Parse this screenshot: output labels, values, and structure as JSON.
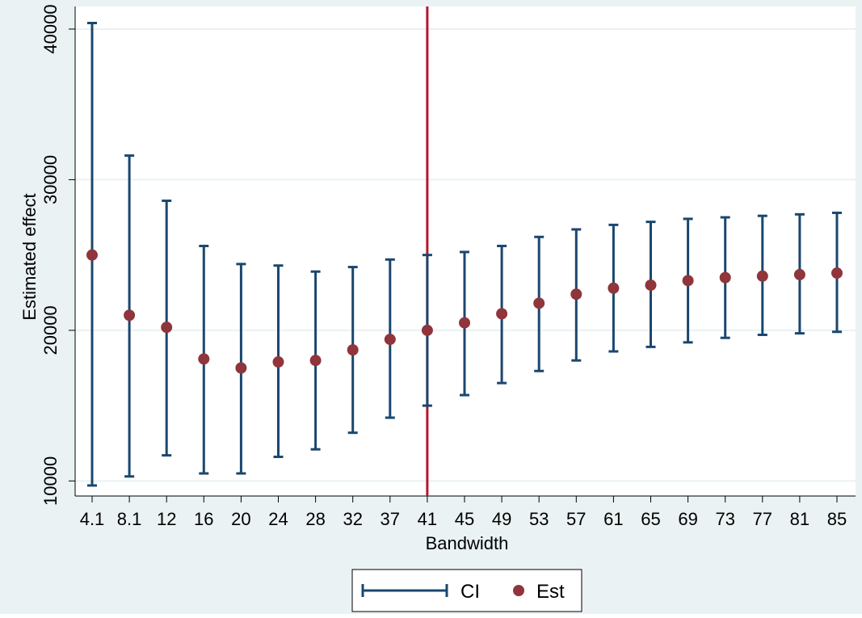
{
  "chart_data": {
    "type": "scatter",
    "xlabel": "Bandwidth",
    "ylabel": "Estimated effect",
    "categories": [
      "4.1",
      "8.1",
      "12",
      "16",
      "20",
      "24",
      "28",
      "32",
      "37",
      "41",
      "45",
      "49",
      "53",
      "57",
      "61",
      "65",
      "69",
      "73",
      "77",
      "81",
      "85"
    ],
    "series": [
      {
        "name": "Est",
        "values": [
          25000,
          21000,
          20200,
          18100,
          17500,
          17900,
          18000,
          18700,
          19400,
          20000,
          20500,
          21100,
          21800,
          22400,
          22800,
          23000,
          23300,
          23500,
          23600,
          23700,
          23800
        ]
      },
      {
        "name": "CI",
        "lower": [
          9700,
          10300,
          11700,
          10500,
          10500,
          11600,
          12100,
          13200,
          14200,
          15000,
          15700,
          16500,
          17300,
          18000,
          18600,
          18900,
          19200,
          19500,
          19700,
          19800,
          19900
        ],
        "upper": [
          40400,
          31600,
          28600,
          25600,
          24400,
          24300,
          23900,
          24200,
          24700,
          25000,
          25200,
          25600,
          26200,
          26700,
          27000,
          27200,
          27400,
          27500,
          27600,
          27700,
          27800
        ]
      }
    ],
    "yticks": [
      10000,
      20000,
      30000,
      40000
    ],
    "ytick_labels": [
      "10000",
      "20000",
      "30000",
      "40000"
    ],
    "ylim": [
      9000,
      41500
    ],
    "reference_line": {
      "x_category": "41",
      "color": "#b5162e"
    },
    "grid": true,
    "legend": {
      "position": "bottom-center",
      "items": [
        {
          "label": "CI",
          "kind": "errorbar"
        },
        {
          "label": "Est",
          "kind": "marker"
        }
      ]
    },
    "colors": {
      "ci": "#1a476f",
      "est": "#90353b",
      "refline": "#b5162e",
      "grid": "#eaf2f3",
      "outer_bg": "#eaf2f3",
      "plot_bg": "#ffffff"
    }
  }
}
